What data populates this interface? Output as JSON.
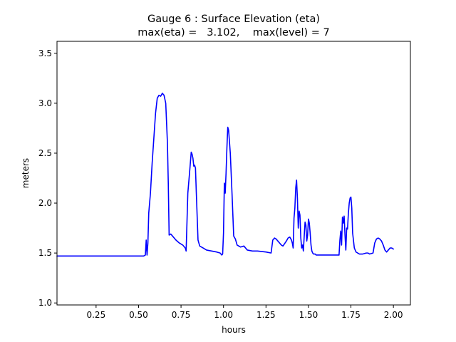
{
  "chart_data": {
    "type": "line",
    "title": "Gauge 6 : Surface Elevation (eta)",
    "subtitle": "max(eta) =   3.102,    max(level) = 7",
    "xlabel": "hours",
    "ylabel": "meters",
    "xlim": [
      0.02,
      2.1
    ],
    "ylim": [
      0.98,
      3.62
    ],
    "x_ticks": [
      0.25,
      0.5,
      0.75,
      1.0,
      1.25,
      1.5,
      1.75,
      2.0
    ],
    "x_tick_labels": [
      "0.25",
      "0.50",
      "0.75",
      "1.00",
      "1.25",
      "1.50",
      "1.75",
      "2.00"
    ],
    "y_ticks": [
      1.0,
      1.5,
      2.0,
      2.5,
      3.0,
      3.5
    ],
    "y_tick_labels": [
      "1.0",
      "1.5",
      "2.0",
      "2.5",
      "3.0",
      "3.5"
    ],
    "grid": false,
    "series": [
      {
        "color": "#0000ff",
        "x": [
          0.02,
          0.53,
          0.54,
          0.545,
          0.55,
          0.555,
          0.56,
          0.57,
          0.58,
          0.59,
          0.6,
          0.61,
          0.62,
          0.63,
          0.64,
          0.65,
          0.66,
          0.67,
          0.675,
          0.68,
          0.69,
          0.7,
          0.72,
          0.74,
          0.76,
          0.775,
          0.78,
          0.79,
          0.8,
          0.81,
          0.815,
          0.82,
          0.825,
          0.83,
          0.835,
          0.84,
          0.85,
          0.86,
          0.88,
          0.9,
          0.93,
          0.96,
          0.98,
          0.99,
          0.995,
          1.0,
          1.005,
          1.01,
          1.015,
          1.02,
          1.025,
          1.03,
          1.04,
          1.05,
          1.06,
          1.07,
          1.075,
          1.08,
          1.1,
          1.12,
          1.14,
          1.17,
          1.2,
          1.25,
          1.28,
          1.29,
          1.3,
          1.31,
          1.32,
          1.34,
          1.35,
          1.37,
          1.38,
          1.39,
          1.4,
          1.405,
          1.41,
          1.415,
          1.42,
          1.425,
          1.43,
          1.435,
          1.44,
          1.445,
          1.45,
          1.455,
          1.46,
          1.465,
          1.47,
          1.475,
          1.48,
          1.485,
          1.49,
          1.495,
          1.5,
          1.505,
          1.51,
          1.515,
          1.52,
          1.525,
          1.53,
          1.535,
          1.54,
          1.545,
          1.55,
          1.56,
          1.57,
          1.6,
          1.62,
          1.65,
          1.68,
          1.685,
          1.69,
          1.695,
          1.7,
          1.705,
          1.71,
          1.715,
          1.72,
          1.725,
          1.73,
          1.735,
          1.74,
          1.745,
          1.75,
          1.755,
          1.76,
          1.77,
          1.78,
          1.8,
          1.82,
          1.84,
          1.85,
          1.86,
          1.88,
          1.89,
          1.9,
          1.91,
          1.92,
          1.93,
          1.94,
          1.95,
          1.96,
          1.97,
          1.98,
          1.99,
          2.0
        ],
        "y": [
          1.47,
          1.47,
          1.48,
          1.63,
          1.48,
          1.6,
          1.9,
          2.1,
          2.4,
          2.65,
          2.9,
          3.05,
          3.08,
          3.07,
          3.1,
          3.08,
          3.0,
          2.6,
          2.2,
          1.68,
          1.69,
          1.67,
          1.63,
          1.6,
          1.58,
          1.55,
          1.52,
          2.1,
          2.3,
          2.51,
          2.49,
          2.45,
          2.37,
          2.38,
          2.35,
          2.1,
          1.63,
          1.57,
          1.55,
          1.53,
          1.52,
          1.51,
          1.5,
          1.48,
          1.49,
          1.7,
          2.2,
          2.1,
          2.3,
          2.55,
          2.76,
          2.73,
          2.5,
          2.1,
          1.67,
          1.64,
          1.61,
          1.58,
          1.56,
          1.57,
          1.53,
          1.52,
          1.52,
          1.51,
          1.5,
          1.63,
          1.65,
          1.64,
          1.62,
          1.58,
          1.57,
          1.62,
          1.65,
          1.66,
          1.63,
          1.6,
          1.55,
          1.85,
          1.95,
          2.15,
          2.23,
          2.05,
          1.75,
          1.92,
          1.88,
          1.65,
          1.55,
          1.58,
          1.52,
          1.67,
          1.81,
          1.78,
          1.62,
          1.68,
          1.84,
          1.8,
          1.7,
          1.58,
          1.52,
          1.5,
          1.49,
          1.49,
          1.49,
          1.48,
          1.48,
          1.48,
          1.48,
          1.48,
          1.48,
          1.48,
          1.48,
          1.63,
          1.72,
          1.58,
          1.86,
          1.8,
          1.87,
          1.68,
          1.53,
          1.75,
          1.74,
          1.9,
          2.0,
          2.05,
          2.06,
          1.95,
          1.7,
          1.55,
          1.51,
          1.49,
          1.49,
          1.5,
          1.5,
          1.49,
          1.5,
          1.6,
          1.64,
          1.65,
          1.64,
          1.62,
          1.58,
          1.53,
          1.51,
          1.53,
          1.55,
          1.55,
          1.54
        ]
      }
    ]
  }
}
